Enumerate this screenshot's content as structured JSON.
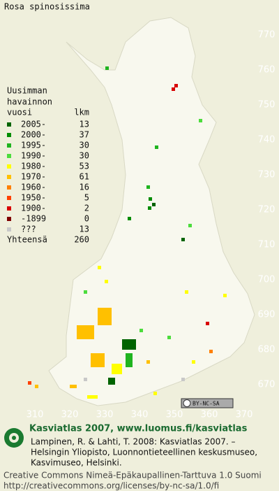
{
  "title": "Rosa spinosissima",
  "legend": {
    "header": [
      "Uusimman",
      "havainnon",
      "vuosi"
    ],
    "count_header": "lkm",
    "rows": [
      {
        "label": "2005-",
        "count": 13,
        "color": "#006400"
      },
      {
        "label": "2000-",
        "count": 37,
        "color": "#008c00"
      },
      {
        "label": "1995-",
        "count": 30,
        "color": "#1fb41f"
      },
      {
        "label": "1990-",
        "count": 30,
        "color": "#4cdc3c"
      },
      {
        "label": "1980-",
        "count": 53,
        "color": "#ffff00"
      },
      {
        "label": "1970-",
        "count": 61,
        "color": "#ffc000"
      },
      {
        "label": "1960-",
        "count": 16,
        "color": "#ff8000"
      },
      {
        "label": "1950-",
        "count": 5,
        "color": "#ff4000"
      },
      {
        "label": "1900-",
        "count": 2,
        "color": "#d80000"
      },
      {
        "label": "-1899",
        "count": 0,
        "color": "#800000"
      },
      {
        "label": "???",
        "count": 13,
        "color": "#c8c8c8"
      }
    ],
    "total_label": "Yhteensä",
    "total": 260
  },
  "map": {
    "x_labels": [
      310,
      320,
      330,
      340,
      350,
      360,
      370
    ],
    "y_labels": [
      670,
      680,
      690,
      700,
      710,
      720,
      730,
      740,
      750,
      760,
      770
    ]
  },
  "badge": "BY-NC-SA",
  "footer": {
    "heading": "Kasviatlas 2007, www.luomus.fi/kasviatlas",
    "citation": [
      "Lampinen, R. & Lahti, T. 2008: Kasviatlas 2007. –",
      "Helsingin Yliopisto, Luonnontieteellinen keskusmuseo,",
      "Kasvimuseo, Helsinki."
    ],
    "license": [
      "Creative Commons Nimeä-Epäkaupallinen-Tarttuva 1.0 Suomi",
      "http://creativecommons.org/licenses/by-nc-sa/1.0/fi"
    ]
  }
}
